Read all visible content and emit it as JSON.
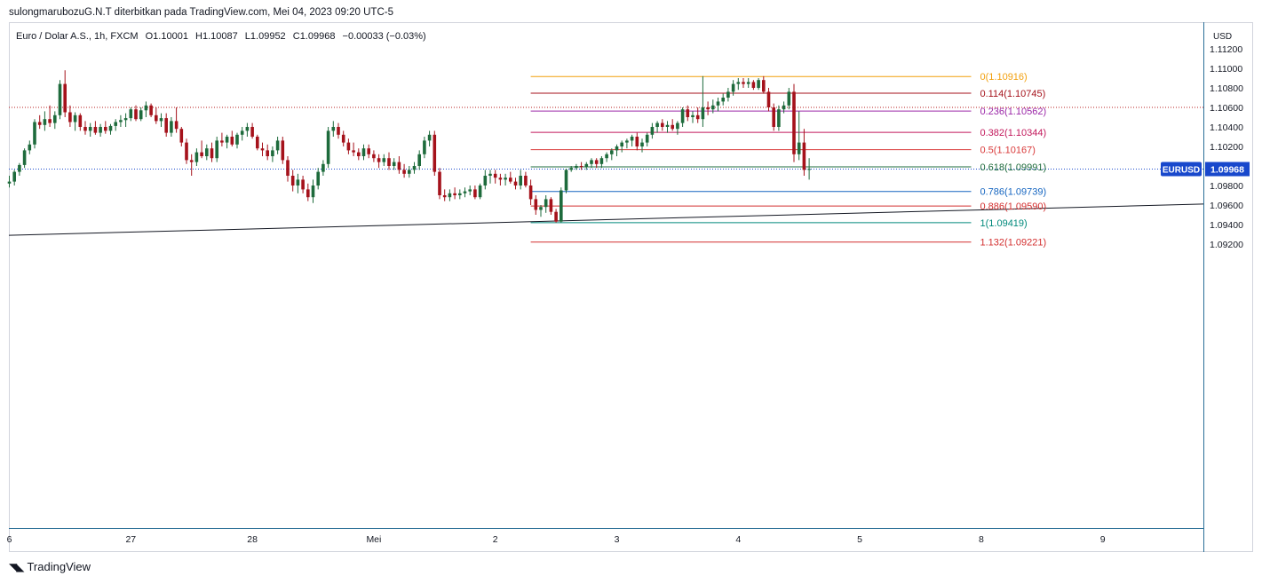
{
  "header": {
    "publisher_line": "sulongmarubozuG.N.T diterbitkan pada TradingView.com, Mei 04, 2023 09:20 UTC-5"
  },
  "legend": {
    "symbol_desc": "Euro / Dolar A.S., 1h, FXCM",
    "open": "O1.10001",
    "high": "H1.10087",
    "low": "L1.09952",
    "close": "C1.09968",
    "change": "−0.00033 (−0.03%)"
  },
  "footer": {
    "brand": "TradingView"
  },
  "colors": {
    "up": "#1e6b3c",
    "down": "#a5121b",
    "axis_badge": "#1848cc",
    "last_price_line": "#1848cc",
    "trendline": "#131722"
  },
  "chart_data": {
    "type": "candlestick",
    "symbol": "EURUSD",
    "interval": "1h",
    "price_axis": {
      "unit": "USD",
      "ylim": [
        1.0905,
        1.1125
      ],
      "ticks": [
        "1.11200",
        "1.11000",
        "1.10800",
        "1.10600",
        "1.10400",
        "1.10200",
        "1.10000",
        "1.09800",
        "1.09600",
        "1.09400",
        "1.09200"
      ]
    },
    "time_axis": {
      "labels": [
        {
          "label": "6",
          "idx": 0
        },
        {
          "label": "27",
          "idx": 24
        },
        {
          "label": "28",
          "idx": 48
        },
        {
          "label": "Mei",
          "idx": 72
        },
        {
          "label": "2",
          "idx": 96
        },
        {
          "label": "3",
          "idx": 120
        },
        {
          "label": "4",
          "idx": 144
        },
        {
          "label": "5",
          "idx": 168
        },
        {
          "label": "8",
          "idx": 192
        },
        {
          "label": "9",
          "idx": 216
        }
      ]
    },
    "last_price": {
      "label": "EURUSD",
      "value": "1.09968",
      "price": 1.09968
    },
    "dotted_level": 1.106,
    "fibonacci": {
      "start_idx": 103,
      "end_idx": 190,
      "levels": [
        {
          "label": "0(1.10916)",
          "price": 1.10916,
          "color": "#f29f0c"
        },
        {
          "label": "0.114(1.10745)",
          "price": 1.10745,
          "color": "#a5121b"
        },
        {
          "label": "0.236(1.10562)",
          "price": 1.10562,
          "color": "#9b27a8"
        },
        {
          "label": "0.382(1.10344)",
          "price": 1.10344,
          "color": "#c2185b"
        },
        {
          "label": "0.5(1.10167)",
          "price": 1.10167,
          "color": "#d93a3a"
        },
        {
          "label": "0.618(1.09991)",
          "price": 1.09991,
          "color": "#1e6b3c"
        },
        {
          "label": "0.786(1.09739)",
          "price": 1.09739,
          "color": "#1565c0"
        },
        {
          "label": "0.886(1.09590)",
          "price": 1.0959,
          "color": "#d32f2f"
        },
        {
          "label": "1(1.09419)",
          "price": 1.09419,
          "color": "#00897b"
        },
        {
          "label": "1.132(1.09221)",
          "price": 1.09221,
          "color": "#d32f2f"
        }
      ]
    },
    "trendline": {
      "from": {
        "idx": 0,
        "price": 1.0929
      },
      "to": {
        "idx": 236,
        "price": 1.0961
      }
    },
    "candles": [
      [
        1.0982,
        1.099,
        1.0978,
        1.0984
      ],
      [
        1.0984,
        1.0996,
        1.098,
        1.0994
      ],
      [
        1.0994,
        1.1003,
        1.099,
        1.1001
      ],
      [
        1.1001,
        1.1018,
        1.0998,
        1.1016
      ],
      [
        1.1016,
        1.1026,
        1.1012,
        1.1022
      ],
      [
        1.1022,
        1.1048,
        1.1018,
        1.1045
      ],
      [
        1.1045,
        1.1052,
        1.1038,
        1.1042
      ],
      [
        1.1042,
        1.1056,
        1.1036,
        1.1048
      ],
      [
        1.1048,
        1.1062,
        1.104,
        1.1044
      ],
      [
        1.1044,
        1.1056,
        1.1038,
        1.1052
      ],
      [
        1.1052,
        1.1088,
        1.1048,
        1.1084
      ],
      [
        1.1084,
        1.1098,
        1.105,
        1.1055
      ],
      [
        1.1055,
        1.1062,
        1.104,
        1.1045
      ],
      [
        1.1045,
        1.1055,
        1.1036,
        1.1052
      ],
      [
        1.1052,
        1.1054,
        1.1036,
        1.104
      ],
      [
        1.104,
        1.1046,
        1.1032,
        1.1036
      ],
      [
        1.1036,
        1.1044,
        1.103,
        1.104
      ],
      [
        1.104,
        1.1046,
        1.1032,
        1.1034
      ],
      [
        1.1034,
        1.1043,
        1.103,
        1.104
      ],
      [
        1.104,
        1.1046,
        1.1033,
        1.1036
      ],
      [
        1.1036,
        1.1043,
        1.1032,
        1.1041
      ],
      [
        1.1041,
        1.1048,
        1.1036,
        1.1045
      ],
      [
        1.1045,
        1.1052,
        1.104,
        1.1047
      ],
      [
        1.1047,
        1.1054,
        1.104,
        1.1049
      ],
      [
        1.1049,
        1.106,
        1.1046,
        1.1058
      ],
      [
        1.1058,
        1.1062,
        1.1046,
        1.1048
      ],
      [
        1.1048,
        1.106,
        1.1046,
        1.1057
      ],
      [
        1.1057,
        1.1066,
        1.105,
        1.1062
      ],
      [
        1.1062,
        1.1064,
        1.105,
        1.1052
      ],
      [
        1.1052,
        1.106,
        1.1043,
        1.1046
      ],
      [
        1.1046,
        1.1054,
        1.104,
        1.1049
      ],
      [
        1.1049,
        1.1054,
        1.103,
        1.1034
      ],
      [
        1.1034,
        1.105,
        1.103,
        1.1046
      ],
      [
        1.1046,
        1.106,
        1.1034,
        1.1038
      ],
      [
        1.1038,
        1.104,
        1.102,
        1.1024
      ],
      [
        1.1024,
        1.1028,
        1.1002,
        1.1006
      ],
      [
        1.1006,
        1.1012,
        1.099,
        1.1004
      ],
      [
        1.1004,
        1.1018,
        1.1,
        1.1014
      ],
      [
        1.1014,
        1.1026,
        1.1008,
        1.101
      ],
      [
        1.101,
        1.1022,
        1.1006,
        1.1018
      ],
      [
        1.1018,
        1.1024,
        1.1004,
        1.1008
      ],
      [
        1.1008,
        1.103,
        1.1004,
        1.1026
      ],
      [
        1.1026,
        1.1034,
        1.102,
        1.1024
      ],
      [
        1.1024,
        1.1032,
        1.1018,
        1.103
      ],
      [
        1.103,
        1.1036,
        1.102,
        1.1022
      ],
      [
        1.1022,
        1.1034,
        1.1018,
        1.1032
      ],
      [
        1.1032,
        1.104,
        1.1026,
        1.1036
      ],
      [
        1.1036,
        1.1044,
        1.103,
        1.104
      ],
      [
        1.104,
        1.1044,
        1.1028,
        1.103
      ],
      [
        1.103,
        1.1032,
        1.1016,
        1.1018
      ],
      [
        1.1018,
        1.1024,
        1.101,
        1.1016
      ],
      [
        1.1016,
        1.1022,
        1.1006,
        1.101
      ],
      [
        1.101,
        1.102,
        1.1004,
        1.1016
      ],
      [
        1.1016,
        1.103,
        1.1012,
        1.1026
      ],
      [
        1.1026,
        1.103,
        1.1002,
        1.1006
      ],
      [
        1.1006,
        1.101,
        1.0984,
        1.099
      ],
      [
        1.099,
        1.0996,
        1.0974,
        1.098
      ],
      [
        1.098,
        1.0992,
        1.0972,
        1.0986
      ],
      [
        1.0986,
        1.099,
        1.0972,
        1.0976
      ],
      [
        1.0976,
        1.0982,
        1.0964,
        1.0968
      ],
      [
        1.0968,
        1.0986,
        1.0962,
        1.098
      ],
      [
        1.098,
        1.0998,
        1.0976,
        1.0994
      ],
      [
        1.0994,
        1.1006,
        1.099,
        1.1002
      ],
      [
        1.1002,
        1.104,
        1.0998,
        1.1036
      ],
      [
        1.1036,
        1.1046,
        1.103,
        1.104
      ],
      [
        1.104,
        1.1044,
        1.1028,
        1.1032
      ],
      [
        1.1032,
        1.1036,
        1.102,
        1.1024
      ],
      [
        1.1024,
        1.1028,
        1.1012,
        1.1016
      ],
      [
        1.1016,
        1.1024,
        1.101,
        1.1014
      ],
      [
        1.1014,
        1.1018,
        1.1006,
        1.101
      ],
      [
        1.101,
        1.1022,
        1.1006,
        1.1018
      ],
      [
        1.1018,
        1.1022,
        1.1008,
        1.1012
      ],
      [
        1.1012,
        1.1016,
        1.1004,
        1.1008
      ],
      [
        1.1008,
        1.1012,
        1.0998,
        1.1004
      ],
      [
        1.1004,
        1.1012,
        1.1,
        1.1008
      ],
      [
        1.1008,
        1.1014,
        1.0996,
        1.1
      ],
      [
        1.1,
        1.1008,
        1.0996,
        1.1004
      ],
      [
        1.1004,
        1.101,
        1.0992,
        1.0996
      ],
      [
        1.0996,
        1.1002,
        1.0988,
        1.0992
      ],
      [
        1.0992,
        1.1,
        1.0988,
        1.0996
      ],
      [
        1.0996,
        1.1004,
        1.0992,
        1.1
      ],
      [
        1.1,
        1.1016,
        1.0996,
        1.1012
      ],
      [
        1.1012,
        1.103,
        1.1008,
        1.1026
      ],
      [
        1.1026,
        1.1036,
        1.102,
        1.1032
      ],
      [
        1.1032,
        1.1036,
        1.099,
        1.0994
      ],
      [
        1.0994,
        1.0998,
        1.0966,
        1.097
      ],
      [
        1.097,
        1.0976,
        1.0964,
        1.0968
      ],
      [
        1.0968,
        1.0976,
        1.0964,
        1.0972
      ],
      [
        1.0972,
        1.0978,
        1.0966,
        1.097
      ],
      [
        1.097,
        1.0976,
        1.0966,
        1.0972
      ],
      [
        1.0972,
        1.0978,
        1.0968,
        1.0974
      ],
      [
        1.0974,
        1.098,
        1.097,
        1.0976
      ],
      [
        1.0976,
        1.098,
        1.0966,
        1.0968
      ],
      [
        1.0968,
        1.0982,
        1.0966,
        1.098
      ],
      [
        1.098,
        1.0996,
        1.0976,
        1.099
      ],
      [
        1.099,
        1.0996,
        1.0982,
        1.0992
      ],
      [
        1.0992,
        1.0996,
        1.0982,
        1.0988
      ],
      [
        1.0988,
        1.0992,
        1.098,
        1.0986
      ],
      [
        1.0986,
        1.0992,
        1.098,
        1.0988
      ],
      [
        1.0988,
        1.0994,
        1.0982,
        1.0984
      ],
      [
        1.0984,
        1.0988,
        1.0976,
        1.098
      ],
      [
        1.098,
        1.0996,
        1.0976,
        1.099
      ],
      [
        1.099,
        1.0994,
        1.0978,
        1.098
      ],
      [
        1.098,
        1.0986,
        1.096,
        1.0966
      ],
      [
        1.0966,
        1.097,
        1.095,
        1.0955
      ],
      [
        1.0955,
        1.096,
        1.0948,
        1.0958
      ],
      [
        1.0958,
        1.097,
        1.0952,
        1.0966
      ],
      [
        1.0966,
        1.0968,
        1.095,
        1.0953
      ],
      [
        1.0953,
        1.0956,
        1.0942,
        1.0943
      ],
      [
        1.0943,
        1.0978,
        1.0942,
        1.0975
      ],
      [
        1.0975,
        1.0997,
        1.0972,
        1.0996
      ],
      [
        1.0996,
        1.1,
        1.0994,
        1.0998
      ],
      [
        1.0998,
        1.1002,
        1.0996,
        1.1
      ],
      [
        1.1,
        1.1004,
        1.0996,
        1.0999
      ],
      [
        1.0999,
        1.1004,
        1.0996,
        1.1002
      ],
      [
        1.1002,
        1.1008,
        1.0998,
        1.1006
      ],
      [
        1.1006,
        1.1008,
        1.0998,
        1.1002
      ],
      [
        1.1002,
        1.101,
        1.0998,
        1.1008
      ],
      [
        1.1008,
        1.1014,
        1.1004,
        1.1012
      ],
      [
        1.1012,
        1.1018,
        1.1006,
        1.1016
      ],
      [
        1.1016,
        1.1022,
        1.101,
        1.102
      ],
      [
        1.102,
        1.1026,
        1.1014,
        1.1024
      ],
      [
        1.1024,
        1.1028,
        1.1018,
        1.1026
      ],
      [
        1.1026,
        1.1032,
        1.102,
        1.103
      ],
      [
        1.103,
        1.1034,
        1.1016,
        1.102
      ],
      [
        1.102,
        1.1028,
        1.1014,
        1.1024
      ],
      [
        1.1024,
        1.1034,
        1.102,
        1.1032
      ],
      [
        1.1032,
        1.1044,
        1.1028,
        1.104
      ],
      [
        1.104,
        1.1046,
        1.1034,
        1.1044
      ],
      [
        1.1044,
        1.1048,
        1.1036,
        1.104
      ],
      [
        1.104,
        1.1046,
        1.1034,
        1.1042
      ],
      [
        1.1042,
        1.1048,
        1.1036,
        1.1038
      ],
      [
        1.1038,
        1.1046,
        1.1032,
        1.1044
      ],
      [
        1.1044,
        1.106,
        1.104,
        1.1058
      ],
      [
        1.1058,
        1.1062,
        1.1046,
        1.105
      ],
      [
        1.105,
        1.1056,
        1.1044,
        1.1052
      ],
      [
        1.1052,
        1.106,
        1.1044,
        1.1048
      ],
      [
        1.1048,
        1.1092,
        1.104,
        1.106
      ],
      [
        1.106,
        1.1066,
        1.1052,
        1.1058
      ],
      [
        1.1058,
        1.1068,
        1.1054,
        1.1062
      ],
      [
        1.1062,
        1.107,
        1.1056,
        1.1066
      ],
      [
        1.1066,
        1.1074,
        1.1062,
        1.107
      ],
      [
        1.107,
        1.108,
        1.1066,
        1.1076
      ],
      [
        1.1076,
        1.1088,
        1.1072,
        1.1084
      ],
      [
        1.1084,
        1.109,
        1.1078,
        1.1086
      ],
      [
        1.1086,
        1.109,
        1.108,
        1.1084
      ],
      [
        1.1084,
        1.109,
        1.108,
        1.1086
      ],
      [
        1.1086,
        1.1088,
        1.1078,
        1.108
      ],
      [
        1.108,
        1.109,
        1.1078,
        1.1088
      ],
      [
        1.1088,
        1.1092,
        1.1074,
        1.1076
      ],
      [
        1.1076,
        1.108,
        1.1056,
        1.106
      ],
      [
        1.106,
        1.1064,
        1.1036,
        1.104
      ],
      [
        1.104,
        1.1062,
        1.1036,
        1.1058
      ],
      [
        1.1058,
        1.1066,
        1.1054,
        1.1062
      ],
      [
        1.1062,
        1.108,
        1.1058,
        1.1076
      ],
      [
        1.1076,
        1.1084,
        1.1004,
        1.1012
      ],
      [
        1.1012,
        1.1056,
        1.1006,
        1.1024
      ],
      [
        1.1024,
        1.1038,
        1.099,
        1.0996
      ],
      [
        1.0996,
        1.1008,
        1.0986,
        1.0997
      ]
    ]
  }
}
